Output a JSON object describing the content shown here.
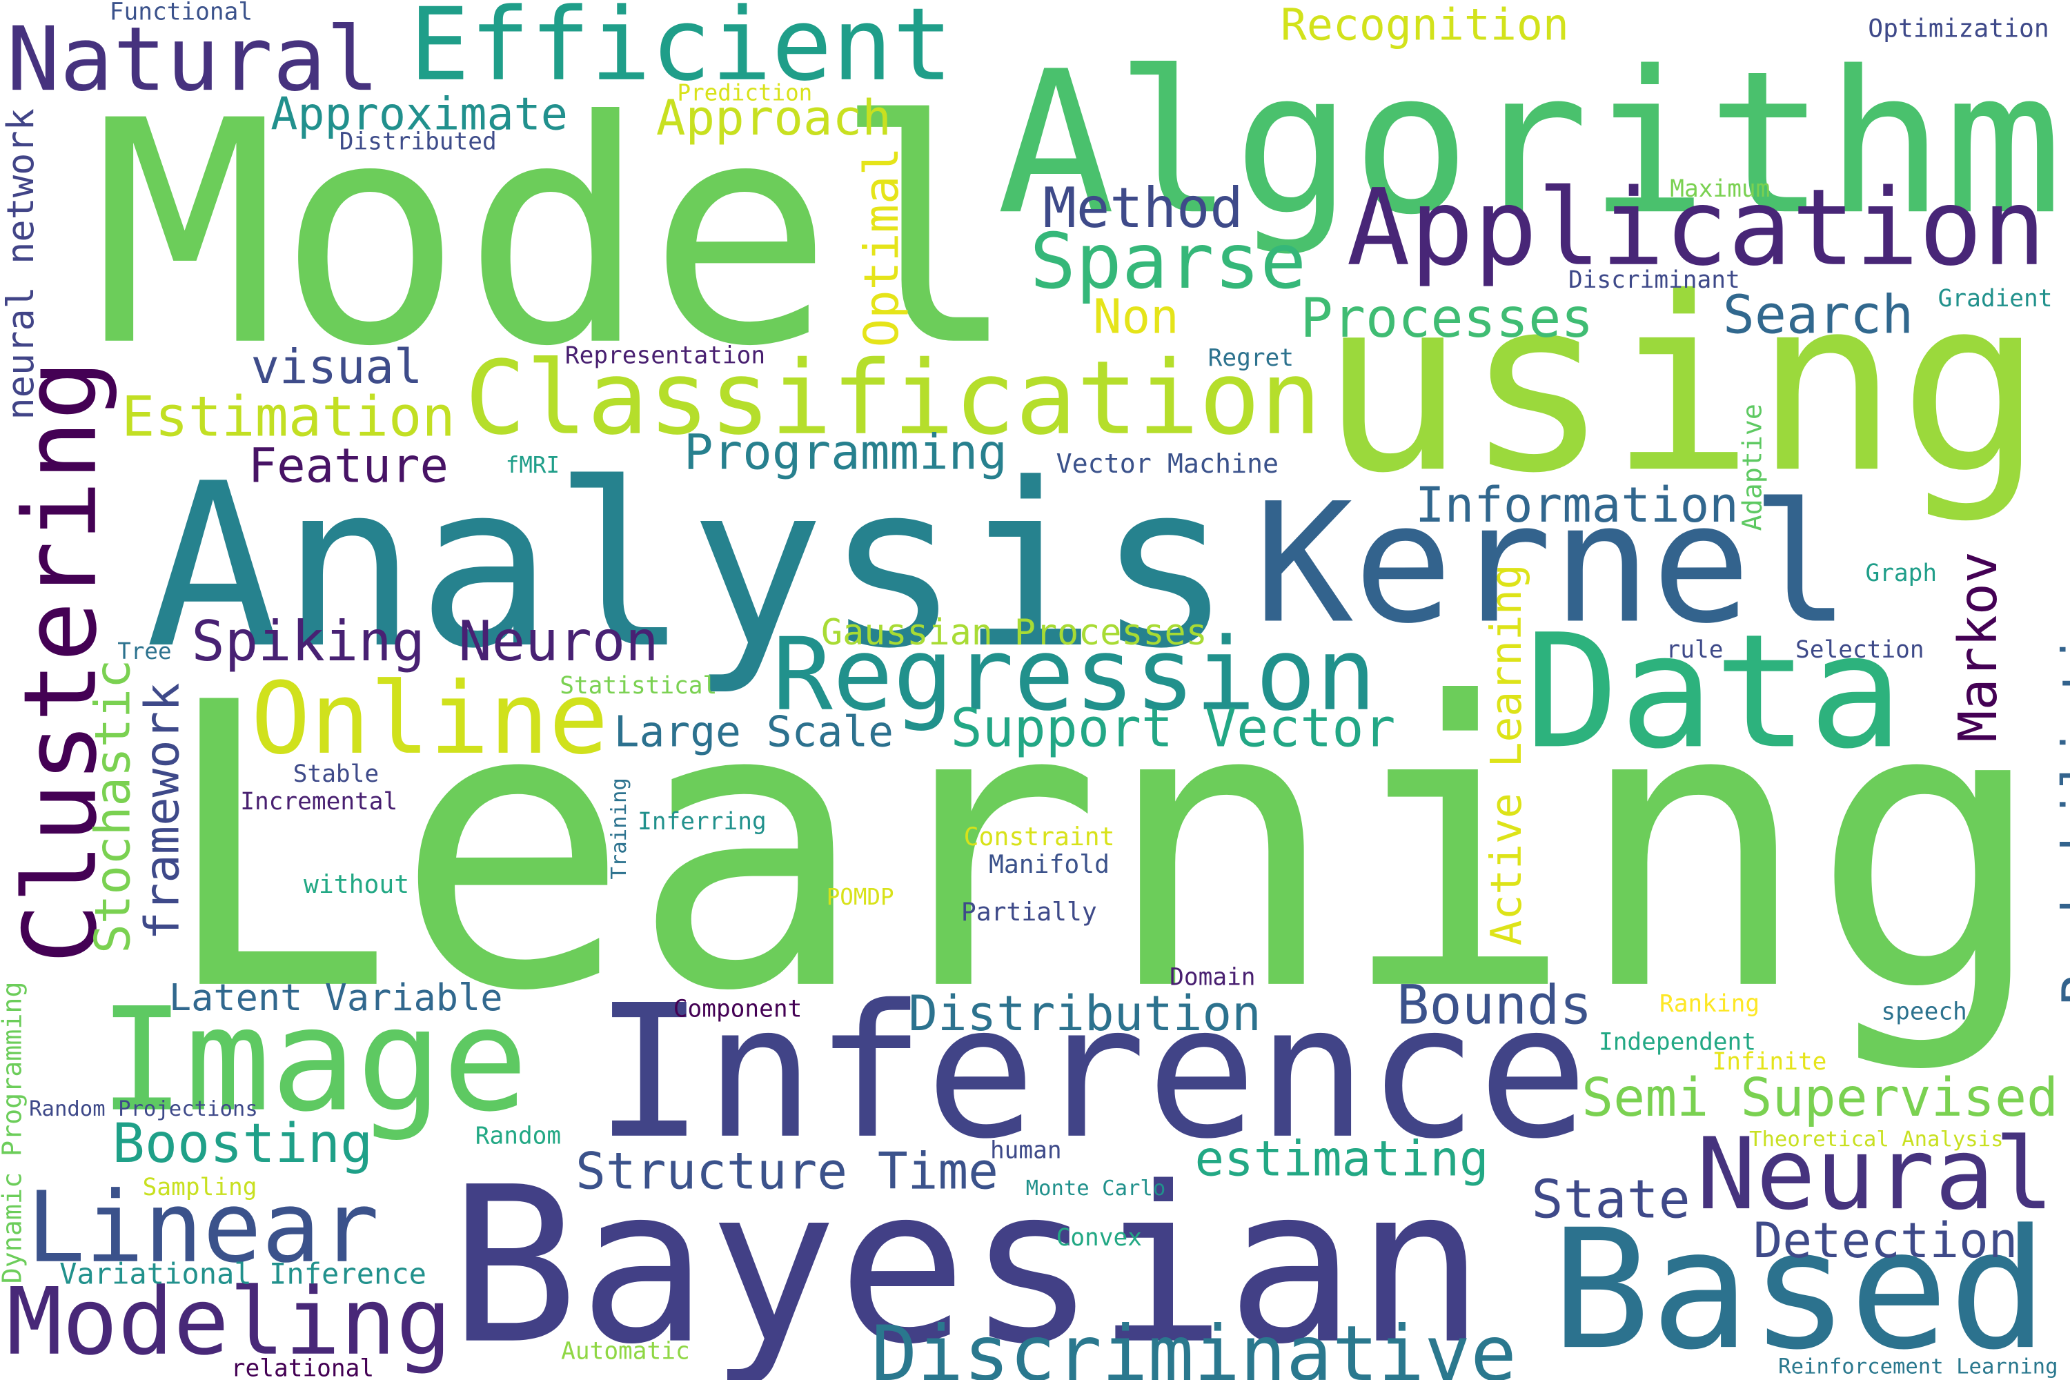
{
  "words": [
    {
      "text": "Learning",
      "color": "#6ccd5a"
    },
    {
      "text": "Model",
      "color": "#6ccd5a"
    },
    {
      "text": "Algorithm",
      "color": "#4ac16d"
    },
    {
      "text": "using",
      "color": "#9bd93c"
    },
    {
      "text": "Analysis",
      "color": "#26828e"
    },
    {
      "text": "Kernel",
      "color": "#33638d"
    },
    {
      "text": "Data",
      "color": "#2db27d"
    },
    {
      "text": "Inference",
      "color": "#414487"
    },
    {
      "text": "Bayesian",
      "color": "#424086"
    },
    {
      "text": "Based",
      "color": "#2c728e"
    },
    {
      "text": "Image",
      "color": "#5ec962"
    },
    {
      "text": "Application",
      "color": "#482677"
    },
    {
      "text": "Clustering",
      "color": "#440154"
    },
    {
      "text": "Classification",
      "color": "#b5de2b"
    },
    {
      "text": "Regression",
      "color": "#21918c"
    },
    {
      "text": "Online",
      "color": "#d0e11c"
    },
    {
      "text": "Natural",
      "color": "#46327e"
    },
    {
      "text": "Efficient",
      "color": "#1f9e89"
    },
    {
      "text": "Linear",
      "color": "#3b528b"
    },
    {
      "text": "Modeling",
      "color": "#482878"
    },
    {
      "text": "Neural",
      "color": "#46337e"
    },
    {
      "text": "Discriminative",
      "color": "#2a788e"
    },
    {
      "text": "Sparse",
      "color": "#35b779"
    },
    {
      "text": "Method",
      "color": "#3e4a89"
    },
    {
      "text": "Processes",
      "color": "#3fbc73"
    },
    {
      "text": "Search",
      "color": "#31688e"
    },
    {
      "text": "Estimation",
      "color": "#c2df23"
    },
    {
      "text": "Programming",
      "color": "#27808e"
    },
    {
      "text": "Feature",
      "color": "#471365"
    },
    {
      "text": "visual",
      "color": "#3e4c8a"
    },
    {
      "text": "Information",
      "color": "#31678e"
    },
    {
      "text": "Spiking Neuron",
      "color": "#482173"
    },
    {
      "text": "Large Scale",
      "color": "#2c718e"
    },
    {
      "text": "Support Vector",
      "color": "#22a785"
    },
    {
      "text": "Gaussian Processes",
      "color": "#a8db34"
    },
    {
      "text": "Markov",
      "color": "#440154"
    },
    {
      "text": "Probabilistic",
      "color": "#33638d"
    },
    {
      "text": "Active Learning",
      "color": "#dde318"
    },
    {
      "text": "Optimal",
      "color": "#e5e419"
    },
    {
      "text": "neural network",
      "color": "#414487"
    },
    {
      "text": "Stochastic",
      "color": "#7ad151"
    },
    {
      "text": "framework",
      "color": "#3e4989"
    },
    {
      "text": "Dynamic Programming",
      "color": "#6ccd5a"
    },
    {
      "text": "Training",
      "color": "#2c728e"
    },
    {
      "text": "Adaptive",
      "color": "#5ec962"
    },
    {
      "text": "Distribution",
      "color": "#2c728e"
    },
    {
      "text": "Bounds",
      "color": "#3b528b"
    },
    {
      "text": "Semi Supervised",
      "color": "#7ad151"
    },
    {
      "text": "Latent Variable",
      "color": "#31688e"
    },
    {
      "text": "Boosting",
      "color": "#1fa088"
    },
    {
      "text": "Structure Time",
      "color": "#3b528b"
    },
    {
      "text": "estimating",
      "color": "#22a884"
    },
    {
      "text": "State",
      "color": "#3e4989"
    },
    {
      "text": "Detection",
      "color": "#3e4a89"
    },
    {
      "text": "Recognition",
      "color": "#d2e21b"
    },
    {
      "text": "Approximate",
      "color": "#21908d"
    },
    {
      "text": "Approach",
      "color": "#c8e020"
    },
    {
      "text": "Non",
      "color": "#e5e419"
    },
    {
      "text": "Variational Inference",
      "color": "#21918c"
    },
    {
      "text": "Reinforcement Learning",
      "color": "#2a788e"
    },
    {
      "text": "Theoretical Analysis",
      "color": "#c8e020"
    },
    {
      "text": "Random Projections",
      "color": "#3e4989"
    },
    {
      "text": "Functional",
      "color": "#3b528b"
    },
    {
      "text": "Prediction",
      "color": "#d8e219"
    },
    {
      "text": "Distributed",
      "color": "#3e4c8a"
    },
    {
      "text": "Optimization",
      "color": "#3e4989"
    },
    {
      "text": "Maximum",
      "color": "#7ad151"
    },
    {
      "text": "Discriminant",
      "color": "#3e4989"
    },
    {
      "text": "Gradient",
      "color": "#21918c"
    },
    {
      "text": "Regret",
      "color": "#2c728e"
    },
    {
      "text": "Representation",
      "color": "#481f70"
    },
    {
      "text": "fMRI",
      "color": "#1f9e89"
    },
    {
      "text": "Vector Machine",
      "color": "#3b528b"
    },
    {
      "text": "Graph",
      "color": "#1f9e89"
    },
    {
      "text": "Tree",
      "color": "#2c728e"
    },
    {
      "text": "rule",
      "color": "#3e4a89"
    },
    {
      "text": "Selection",
      "color": "#3e4a89"
    },
    {
      "text": "Statistical",
      "color": "#7ad151"
    },
    {
      "text": "Stable",
      "color": "#3e4a89"
    },
    {
      "text": "Incremental",
      "color": "#481f70"
    },
    {
      "text": "Inferring",
      "color": "#21918c"
    },
    {
      "text": "Constraint",
      "color": "#d8e219"
    },
    {
      "text": "Manifold",
      "color": "#3b528b"
    },
    {
      "text": "without",
      "color": "#22a884"
    },
    {
      "text": "POMDP",
      "color": "#d8e219"
    },
    {
      "text": "Partially",
      "color": "#3e4a89"
    },
    {
      "text": "Domain",
      "color": "#481f70"
    },
    {
      "text": "Ranking",
      "color": "#fde725"
    },
    {
      "text": "speech",
      "color": "#2c728e"
    },
    {
      "text": "Component",
      "color": "#440154"
    },
    {
      "text": "Independent",
      "color": "#22a884"
    },
    {
      "text": "Infinite",
      "color": "#e5e419"
    },
    {
      "text": "Random",
      "color": "#22a884"
    },
    {
      "text": "human",
      "color": "#3e4a89"
    },
    {
      "text": "Sampling",
      "color": "#c8e020"
    },
    {
      "text": "Monte Carlo",
      "color": "#21918c"
    },
    {
      "text": "Convex",
      "color": "#22a884"
    },
    {
      "text": "Automatic",
      "color": "#8fd744"
    },
    {
      "text": "relational",
      "color": "#440154"
    }
  ]
}
